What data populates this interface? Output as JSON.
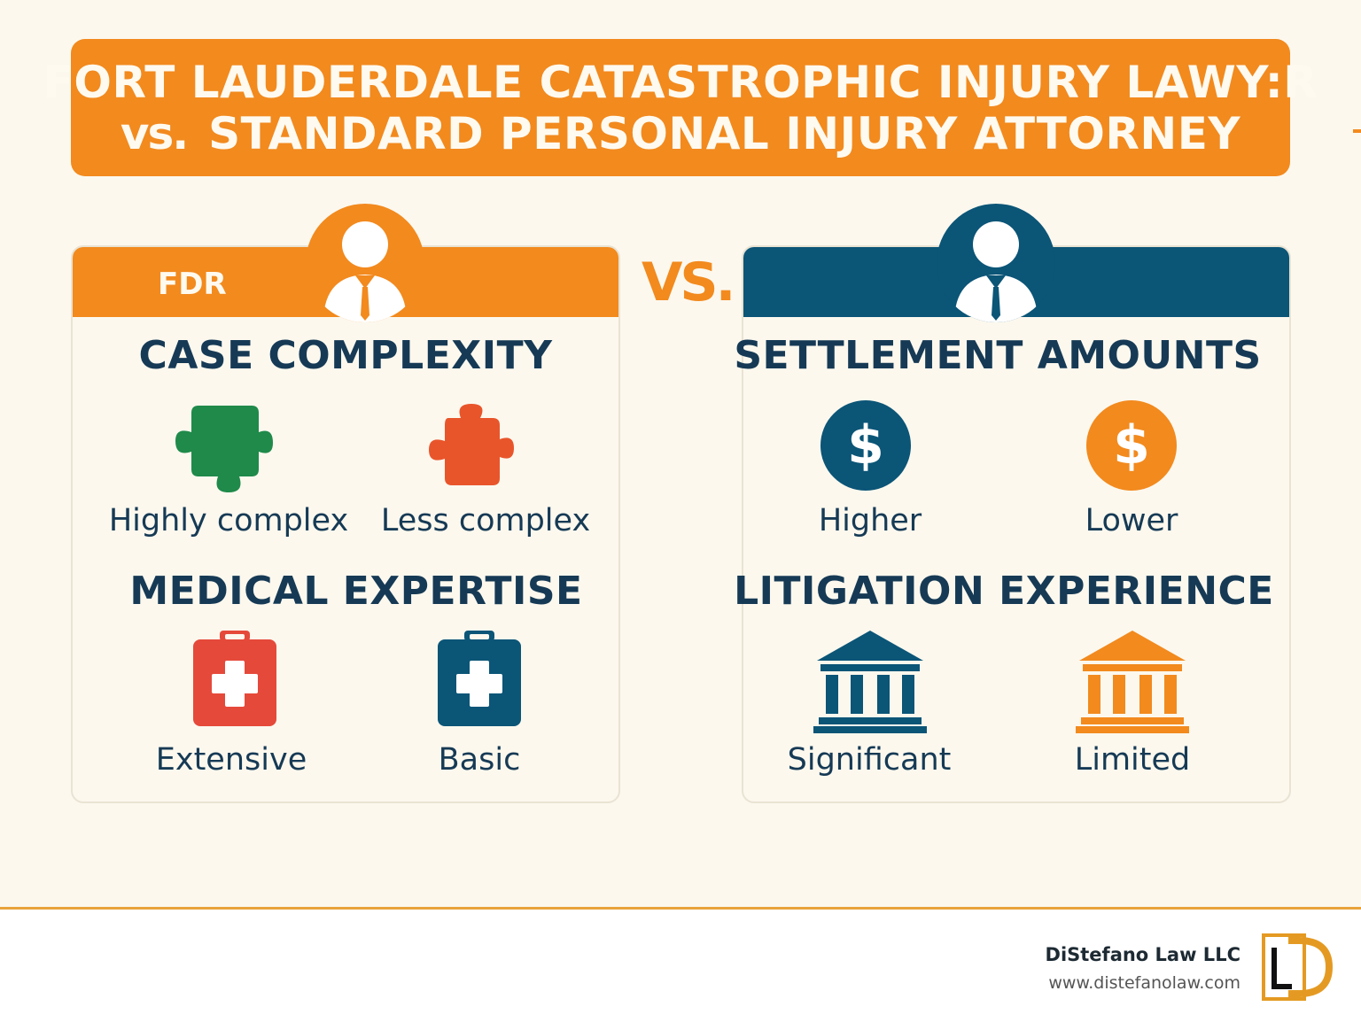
{
  "title": {
    "line1": "FORT LAUDERDALE CATASTROPHIC INJURY LAWY:R",
    "line2_vs": "vs.",
    "line2_rest": "STANDARD PERSONAL INJURY ATTORNEY"
  },
  "left_card": {
    "header_label": "FDR",
    "case_complexity": {
      "title": "CASE COMPLEXITY",
      "items": [
        {
          "label": "Highly complex",
          "icon": "puzzle-piece-icon",
          "color": "#1f8a4a"
        },
        {
          "label": "Less complex",
          "icon": "puzzle-piece-icon",
          "color": "#e9552b"
        }
      ]
    },
    "medical_expertise": {
      "title": "MEDICAL  EXPERTISE",
      "items": [
        {
          "label": "Extensive",
          "icon": "medical-kit-icon",
          "color": "#e5493a"
        },
        {
          "label": "Basic",
          "icon": "medical-kit-icon",
          "color": "#0b5577"
        }
      ]
    }
  },
  "vs_label": "VS.",
  "right_card": {
    "settlement_amounts": {
      "title": "SETTLEMENT AMOUNTS",
      "items": [
        {
          "label": "Higher",
          "icon": "dollar-icon",
          "color": "#0b5577"
        },
        {
          "label": "Lower",
          "icon": "dollar-icon",
          "color": "#f28a1e"
        }
      ]
    },
    "litigation_experience": {
      "title": "LITIGATION EXPERIENCE",
      "items": [
        {
          "label": "Significant",
          "icon": "courthouse-icon",
          "color": "#0b5577"
        },
        {
          "label": "Limited",
          "icon": "courthouse-icon",
          "color": "#f28a1e"
        }
      ]
    }
  },
  "footer": {
    "company": "DiStefano Law LLC",
    "url": "www.distefanolaw.com",
    "logo_letters": "LD"
  },
  "colors": {
    "orange": "#f28a1e",
    "navy": "#0b5577",
    "text": "#163a55",
    "background": "#fcf8ee"
  }
}
